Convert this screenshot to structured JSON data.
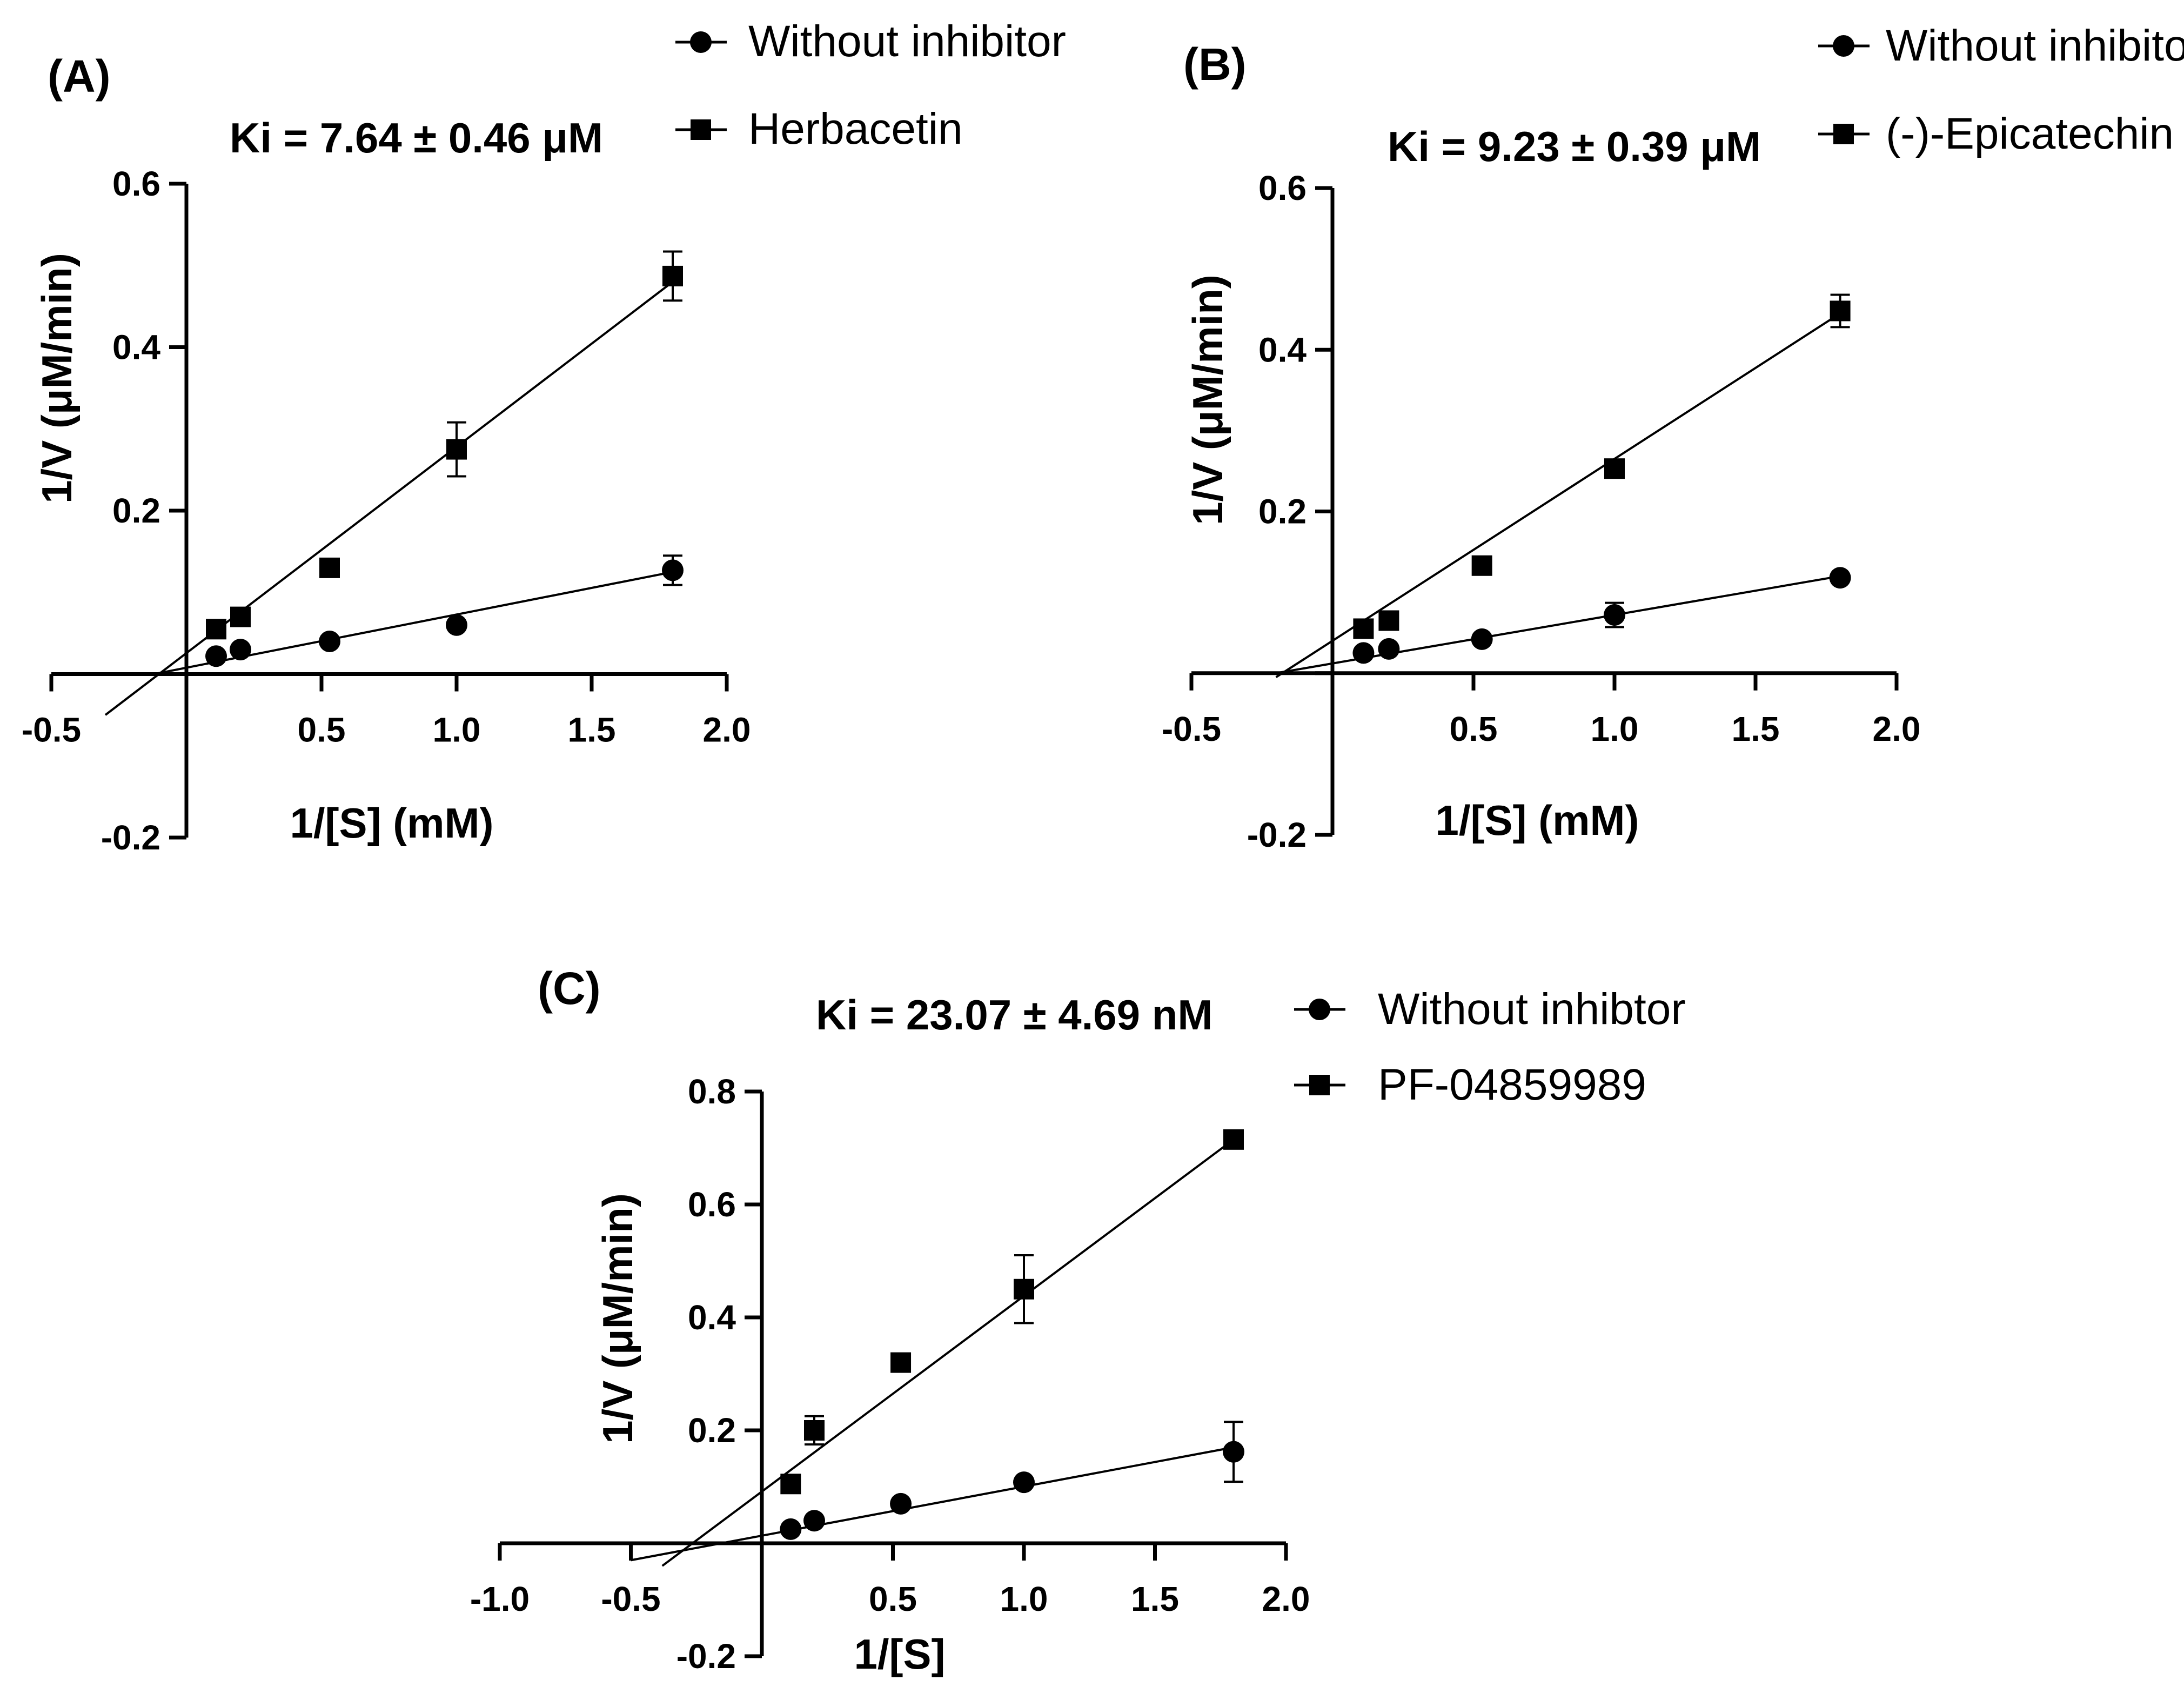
{
  "chart_data": [
    {
      "type": "scatter",
      "panel_label": "(A)",
      "annotation": "Ki = 7.64 ± 0.46 μM",
      "xlabel": "1/[S] (mM)",
      "ylabel": "1/V (μM/min)",
      "xlim": [
        -0.5,
        2.0
      ],
      "ylim": [
        -0.2,
        0.6
      ],
      "xticks": [
        -0.5,
        0.5,
        1.0,
        1.5,
        2.0
      ],
      "xtick_labels": [
        "-0.5",
        "0.5",
        "1.0",
        "1.5",
        "2.0"
      ],
      "yticks": [
        -0.2,
        0.2,
        0.4,
        0.6
      ],
      "ytick_labels": [
        "-0.2",
        "0.2",
        "0.4",
        "0.6"
      ],
      "legend": [
        "Without inhibitor",
        "Herbacetin"
      ],
      "series": [
        {
          "name": "Without inhibitor",
          "marker": "circle",
          "x": [
            0.11,
            0.2,
            0.53,
            1.0,
            1.8
          ],
          "y": [
            0.022,
            0.03,
            0.04,
            0.06,
            0.127
          ],
          "err": [
            0,
            0,
            0,
            0,
            0.018
          ],
          "fit_x": [
            -0.12,
            1.8
          ],
          "fit_y": [
            0.0,
            0.125
          ]
        },
        {
          "name": "Herbacetin",
          "marker": "square",
          "x": [
            0.11,
            0.2,
            0.53,
            1.0,
            1.8
          ],
          "y": [
            0.055,
            0.07,
            0.13,
            0.275,
            0.487
          ],
          "err": [
            0,
            0,
            0,
            0.033,
            0.03
          ],
          "fit_x": [
            -0.3,
            1.8
          ],
          "fit_y": [
            -0.05,
            0.48
          ]
        }
      ]
    },
    {
      "type": "scatter",
      "panel_label": "(B)",
      "annotation": "Ki = 9.23 ± 0.39 μM",
      "xlabel": "1/[S] (mM)",
      "ylabel": "1/V (μM/min)",
      "xlim": [
        -0.5,
        2.0
      ],
      "ylim": [
        -0.2,
        0.6
      ],
      "xticks": [
        -0.5,
        0.5,
        1.0,
        1.5,
        2.0
      ],
      "xtick_labels": [
        "-0.5",
        "0.5",
        "1.0",
        "1.5",
        "2.0"
      ],
      "yticks": [
        -0.2,
        0.2,
        0.4,
        0.6
      ],
      "ytick_labels": [
        "-0.2",
        "0.2",
        "0.4",
        "0.6"
      ],
      "legend": [
        "Without inhibitor",
        "(-)-Epicatechin"
      ],
      "series": [
        {
          "name": "Without inhibitor",
          "marker": "circle",
          "x": [
            0.11,
            0.2,
            0.53,
            1.0,
            1.8
          ],
          "y": [
            0.025,
            0.03,
            0.042,
            0.072,
            0.118
          ],
          "err": [
            0,
            0,
            0,
            0.015,
            0
          ],
          "fit_x": [
            -0.2,
            1.8
          ],
          "fit_y": [
            0.0,
            0.12
          ]
        },
        {
          "name": "(-)-Epicatechin",
          "marker": "square",
          "x": [
            0.11,
            0.2,
            0.53,
            1.0,
            1.8
          ],
          "y": [
            0.055,
            0.065,
            0.133,
            0.253,
            0.448
          ],
          "err": [
            0,
            0,
            0,
            0,
            0.02
          ],
          "fit_x": [
            -0.2,
            1.8
          ],
          "fit_y": [
            -0.005,
            0.445
          ]
        }
      ]
    },
    {
      "type": "scatter",
      "panel_label": "(C)",
      "annotation": "Ki = 23.07 ± 4.69 nM",
      "xlabel": "1/[S]",
      "ylabel": "1/V (μM/min)",
      "xlim": [
        -1.0,
        2.0
      ],
      "ylim": [
        -0.2,
        0.8
      ],
      "xticks": [
        -1.0,
        -0.5,
        0.5,
        1.0,
        1.5,
        2.0
      ],
      "xtick_labels": [
        "-1.0",
        "-0.5",
        "0.5",
        "1.0",
        "1.5",
        "2.0"
      ],
      "yticks": [
        -0.2,
        0.2,
        0.4,
        0.6,
        0.8
      ],
      "ytick_labels": [
        "-0.2",
        "0.2",
        "0.4",
        "0.6",
        "0.8"
      ],
      "legend": [
        "Without inhibtor",
        "PF-04859989"
      ],
      "series": [
        {
          "name": "Without inhibtor",
          "marker": "circle",
          "x": [
            0.11,
            0.2,
            0.53,
            1.0,
            1.8
          ],
          "y": [
            0.025,
            0.04,
            0.07,
            0.108,
            0.162
          ],
          "err": [
            0,
            0,
            0,
            0,
            0.053
          ],
          "fit_x": [
            -0.5,
            1.8
          ],
          "fit_y": [
            -0.03,
            0.17
          ]
        },
        {
          "name": "PF-04859989",
          "marker": "square",
          "x": [
            0.11,
            0.2,
            0.53,
            1.0,
            1.8
          ],
          "y": [
            0.105,
            0.2,
            0.32,
            0.45,
            0.715
          ],
          "err": [
            0,
            0.025,
            0,
            0.06,
            0
          ],
          "fit_x": [
            -0.38,
            1.8
          ],
          "fit_y": [
            -0.04,
            0.715
          ]
        }
      ]
    }
  ]
}
